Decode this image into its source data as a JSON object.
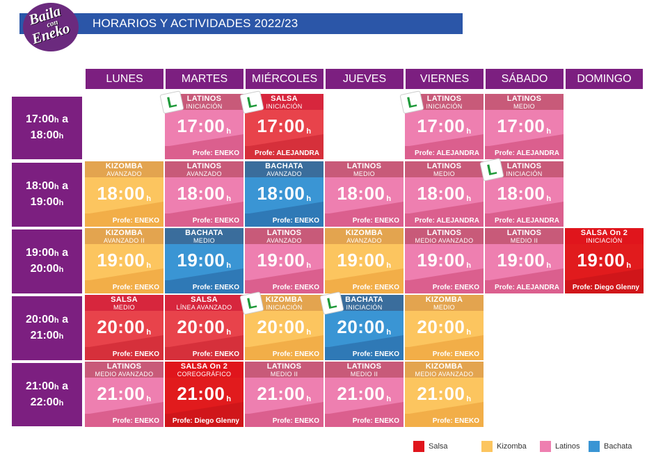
{
  "header": {
    "title": "HORARIOS Y ACTIVIDADES 2022/23",
    "logo": [
      "Baila",
      "con",
      "Eneko"
    ]
  },
  "days": [
    "LUNES",
    "MARTES",
    "MIÉRCOLES",
    "JUEVES",
    "VIERNES",
    "SÁBADO",
    "DOMINGO"
  ],
  "time_slots": [
    {
      "range_a": "17:00",
      "range_b": "18:00",
      "h": "h",
      "a": "a"
    },
    {
      "range_a": "18:00",
      "range_b": "19:00",
      "h": "h",
      "a": "a"
    },
    {
      "range_a": "19:00",
      "range_b": "20:00",
      "h": "h",
      "a": "a"
    },
    {
      "range_a": "20:00",
      "range_b": "21:00",
      "h": "h",
      "a": "a"
    },
    {
      "range_a": "21:00",
      "range_b": "22:00",
      "h": "h",
      "a": "a"
    }
  ],
  "classes": [
    {
      "title": "LATINOS",
      "level": "INICIACIÓN",
      "time": "17:00",
      "h": "h",
      "prof": "Profe: ENEKO",
      "style": "latinos",
      "beginner_badge": "L"
    },
    {
      "title": "SALSA",
      "level": "INICIACIÓN",
      "time": "17:00",
      "h": "h",
      "prof": "Profe:  ALEJANDRA",
      "style": "salsa",
      "beginner_badge": "L"
    },
    {
      "title": "LATINOS",
      "level": "INICIACIÓN",
      "time": "17:00",
      "h": "h",
      "prof": "Profe:  ALEJANDRA",
      "style": "latinos",
      "beginner_badge": "L"
    },
    {
      "title": "LATINOS",
      "level": "MEDIO",
      "time": "17:00",
      "h": "h",
      "prof": "Profe: ALEJANDRA",
      "style": "latinos",
      "beginner_badge": ""
    },
    {
      "title": "KIZOMBA",
      "level": "AVANZADO",
      "time": "18:00",
      "h": "h",
      "prof": "Profe: ENEKO",
      "style": "kizomba",
      "beginner_badge": ""
    },
    {
      "title": "LATINOS",
      "level": "AVANZADO",
      "time": "18:00",
      "h": "h",
      "prof": "Profe: ENEKO",
      "style": "latinos",
      "beginner_badge": ""
    },
    {
      "title": "BACHATA",
      "level": "AVANZADO",
      "time": "18:00",
      "h": "h",
      "prof": "Profe: ENEKO",
      "style": "bachata",
      "beginner_badge": ""
    },
    {
      "title": "LATINOS",
      "level": "MEDIO",
      "time": "18:00",
      "h": "h",
      "prof": "Profe: ENEKO",
      "style": "latinos",
      "beginner_badge": ""
    },
    {
      "title": "LATINOS",
      "level": "MEDIO",
      "time": "18:00",
      "h": "h",
      "prof": "Profe:  ALEJANDRA",
      "style": "latinos",
      "beginner_badge": ""
    },
    {
      "title": "LATINOS",
      "level": "INICIACIÓN",
      "time": "18:00",
      "h": "h",
      "prof": "Profe:  ALEJANDRA",
      "style": "latinos",
      "beginner_badge": "L"
    },
    {
      "title": "KIZOMBA",
      "level": "AVANZADO II",
      "time": "19:00",
      "h": "h",
      "prof": "Profe: ENEKO",
      "style": "kizomba",
      "beginner_badge": ""
    },
    {
      "title": "BACHATA",
      "level": "MEDIO",
      "time": "19:00",
      "h": "h",
      "prof": "Profe: ENEKO",
      "style": "bachata",
      "beginner_badge": ""
    },
    {
      "title": "LATINOS",
      "level": "AVANZADO",
      "time": "19:00",
      "h": "h",
      "prof": "Profe: ENEKO",
      "style": "latinos",
      "beginner_badge": ""
    },
    {
      "title": "KIZOMBA",
      "level": "AVANZADO",
      "time": "19:00",
      "h": "h",
      "prof": "Profe: ENEKO",
      "style": "kizomba",
      "beginner_badge": ""
    },
    {
      "title": "LATINOS",
      "level": "MEDIO AVANZADO",
      "time": "19:00",
      "h": "h",
      "prof": "Profe: ENEKO",
      "style": "latinos",
      "beginner_badge": ""
    },
    {
      "title": "LATINOS",
      "level": "MEDIO II",
      "time": "19:00",
      "h": "h",
      "prof": "Profe:  ALEJANDRA",
      "style": "latinos",
      "beginner_badge": ""
    },
    {
      "title": "SALSA On 2",
      "level": "INICIACIÓN",
      "time": "19:00",
      "h": "h",
      "prof": "Profe: Diego Glenny",
      "style": "salsa2",
      "beginner_badge": ""
    },
    {
      "title": "SALSA",
      "level": "MEDIO",
      "time": "20:00",
      "h": "h",
      "prof": "Profe: ENEKO",
      "style": "salsa",
      "beginner_badge": ""
    },
    {
      "title": "SALSA",
      "level": "LÍNEA AVANZADO",
      "time": "20:00",
      "h": "h",
      "prof": "Profe: ENEKO",
      "style": "salsa",
      "beginner_badge": ""
    },
    {
      "title": "KIZOMBA",
      "level": "INICIACIÓN",
      "time": "20:00",
      "h": "h",
      "prof": "Profe: ENEKO",
      "style": "kizomba",
      "beginner_badge": "L"
    },
    {
      "title": "BACHATA",
      "level": "INICIACIÓN",
      "time": "20:00",
      "h": "h",
      "prof": "Profe: ENEKO",
      "style": "bachata",
      "beginner_badge": "L"
    },
    {
      "title": "KIZOMBA",
      "level": "MEDIO",
      "time": "20:00",
      "h": "h",
      "prof": "Profe: ENEKO",
      "style": "kizomba",
      "beginner_badge": ""
    },
    {
      "title": "LATINOS",
      "level": "MEDIO AVANZADO",
      "time": "21:00",
      "h": "h",
      "prof": "Profe: ENEKO",
      "style": "latinos",
      "beginner_badge": ""
    },
    {
      "title": "SALSA On 2",
      "level": "COREOGRÁFICO",
      "time": "21:00",
      "h": "h",
      "prof": "Profe: Diego Glenny",
      "style": "salsa2",
      "beginner_badge": ""
    },
    {
      "title": "LATINOS",
      "level": "MEDIO II",
      "time": "21:00",
      "h": "h",
      "prof": "Profe: ENEKO",
      "style": "latinos",
      "beginner_badge": ""
    },
    {
      "title": "LATINOS",
      "level": "MEDIO II",
      "time": "21:00",
      "h": "h",
      "prof": "Profe: ENEKO",
      "style": "latinos",
      "beginner_badge": ""
    },
    {
      "title": "KIZOMBA",
      "level": "MEDIO AVANZADO",
      "time": "21:00",
      "h": "h",
      "prof": "Profe: ENEKO",
      "style": "kizomba",
      "beginner_badge": ""
    }
  ],
  "legend": [
    {
      "label": "Salsa",
      "color": "#e0151c"
    },
    {
      "label": "Kizomba",
      "color": "#fcc55f"
    },
    {
      "label": "Latinos",
      "color": "#ee7fb0"
    },
    {
      "label": "Bachata",
      "color": "#3a95d4"
    }
  ]
}
